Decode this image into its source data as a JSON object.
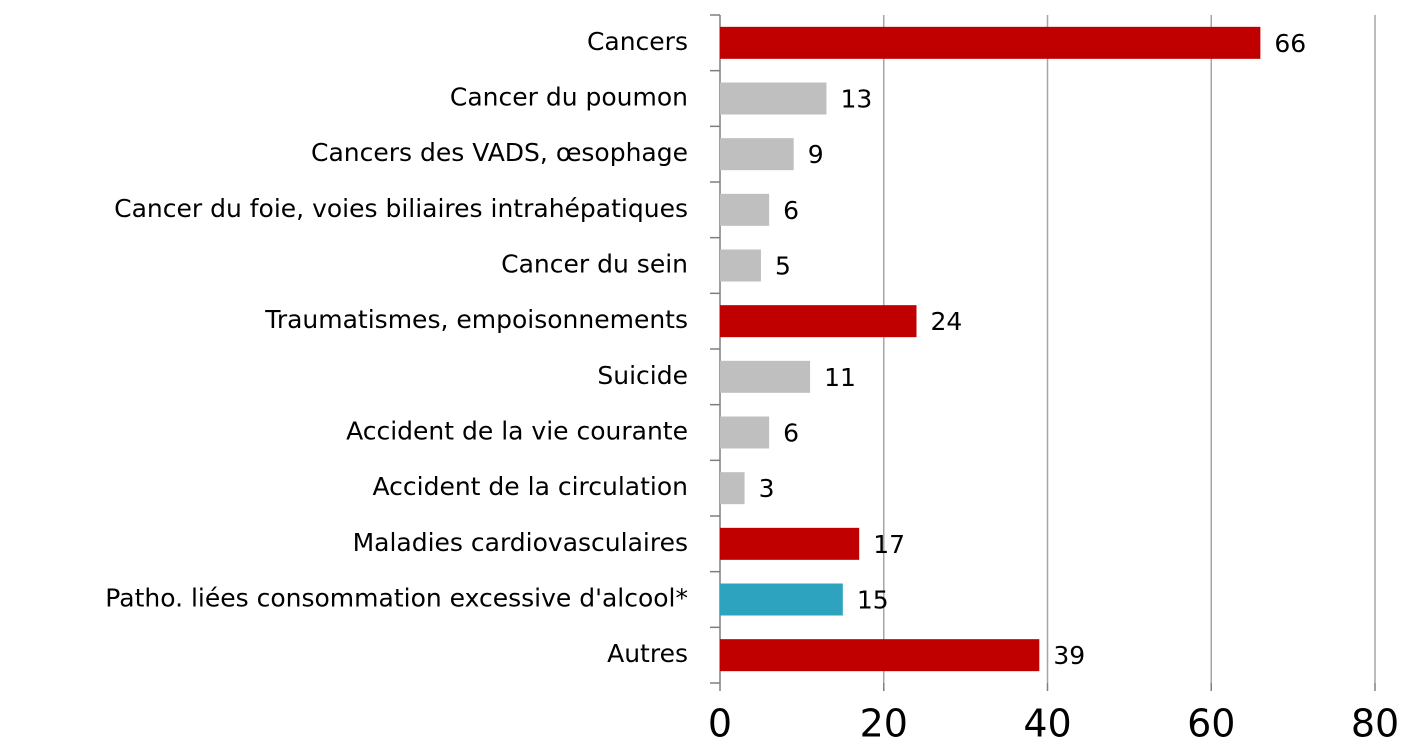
{
  "chart_data": {
    "type": "barh",
    "categories": [
      "Cancers",
      "Cancer du poumon",
      "Cancers des VADS, œsophage",
      "Cancer du foie, voies biliaires intrahépatiques",
      "Cancer du sein",
      "Traumatismes, empoisonnements",
      "Suicide",
      "Accident de la vie courante",
      "Accident de la circulation",
      "Maladies cardiovasculaires",
      "Patho. liées consommation excessive d'alcool*",
      "Autres"
    ],
    "values": [
      66,
      13,
      9,
      6,
      5,
      24,
      11,
      6,
      3,
      17,
      15,
      39
    ],
    "colors": [
      "#c00000",
      "#bfbfbf",
      "#bfbfbf",
      "#bfbfbf",
      "#bfbfbf",
      "#c00000",
      "#bfbfbf",
      "#bfbfbf",
      "#bfbfbf",
      "#c00000",
      "#2ea3bf",
      "#c00000"
    ],
    "xlim": [
      0,
      80
    ],
    "xticks": [
      0,
      20,
      40,
      60,
      80
    ],
    "grid": true
  }
}
